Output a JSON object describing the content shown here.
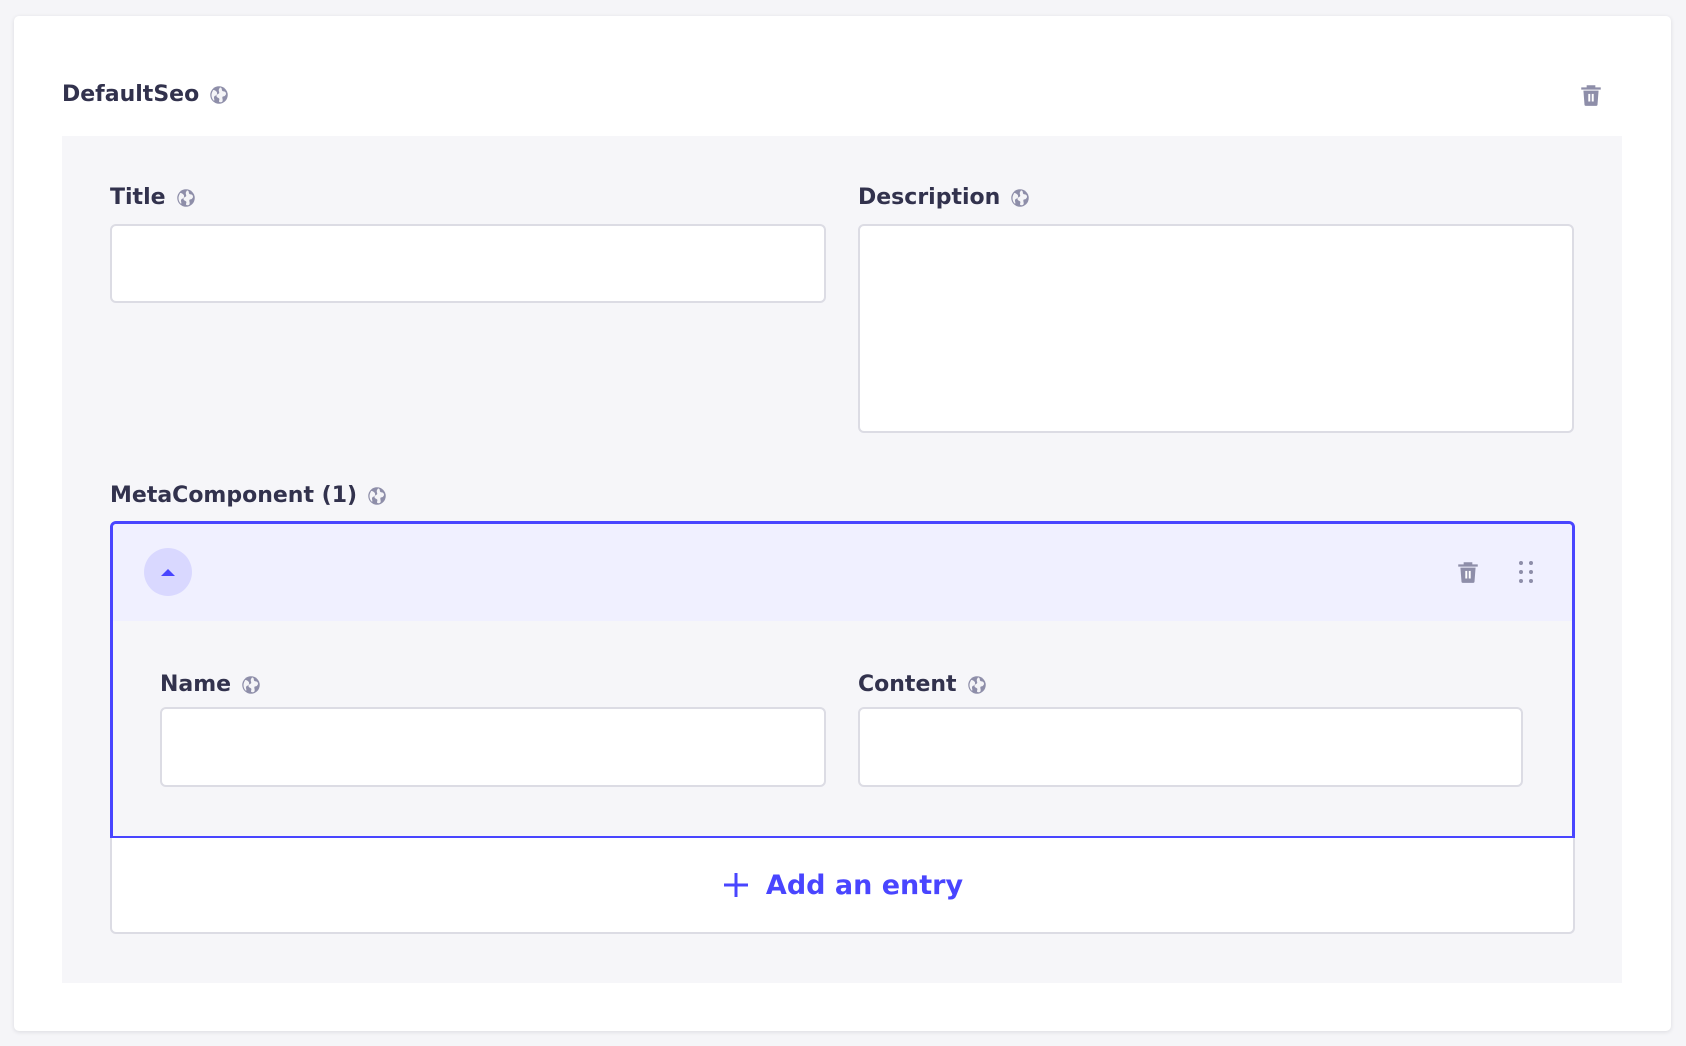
{
  "component": {
    "title": "DefaultSeo",
    "delete_icon": "trash-icon"
  },
  "fields": {
    "title": {
      "label": "Title",
      "value": "",
      "icon": "globe-icon"
    },
    "description": {
      "label": "Description",
      "value": "",
      "icon": "globe-icon"
    }
  },
  "repeatable": {
    "label": "MetaComponent (1)",
    "entry": {
      "collapse_icon": "chevron-up-icon",
      "delete_icon": "trash-icon",
      "drag_icon": "drag-handle-icon",
      "name": {
        "label": "Name",
        "value": ""
      },
      "content": {
        "label": "Content",
        "value": ""
      }
    },
    "add_label": "Add an entry"
  },
  "colors": {
    "accent": "#4945ff",
    "icon": "#8e8ea9",
    "text": "#32324d"
  }
}
